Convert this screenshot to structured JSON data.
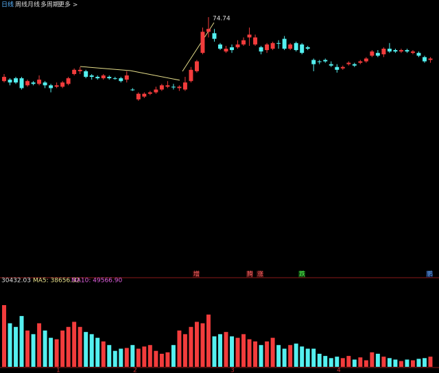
{
  "chart_data": {
    "type": "candlestick",
    "tabs": [
      "日线",
      "周线",
      "月线",
      "多周期",
      "更多 >"
    ],
    "peak_label_index": 35,
    "open": [
      70.2,
      70.3,
      70.4,
      70.4,
      69.9,
      70.1,
      70.0,
      70.1,
      69.9,
      69.8,
      69.8,
      70.0,
      70.7,
      70.9,
      70.9,
      70.6,
      70.5,
      70.4,
      70.5,
      70.4,
      70.4,
      70.3,
      69.6,
      68.9,
      69.1,
      69.3,
      69.4,
      69.6,
      69.8,
      69.8,
      69.7,
      69.6,
      70.2,
      70.9,
      72.2,
      73.7,
      73.6,
      72.8,
      72.3,
      72.6,
      72.6,
      72.8,
      73.3,
      72.8,
      72.6,
      72.4,
      72.5,
      72.9,
      73.2,
      72.5,
      72.9,
      72.8,
      72.6,
      71.7,
      71.6,
      71.7,
      71.4,
      71.2,
      71.1,
      71.4,
      71.4,
      71.5,
      71.6,
      72.0,
      72.2,
      72.1,
      72.5,
      72.4,
      72.3,
      72.4,
      72.2,
      72.2,
      71.9,
      71.7
    ],
    "close": [
      70.5,
      70.1,
      70.1,
      69.7,
      70.2,
      70.0,
      70.3,
      69.9,
      69.7,
      69.9,
      70.1,
      70.4,
      71.0,
      71.0,
      70.5,
      70.5,
      70.4,
      70.6,
      70.4,
      70.35,
      70.2,
      70.6,
      69.55,
      69.3,
      69.3,
      69.4,
      69.6,
      69.9,
      69.9,
      69.75,
      69.8,
      70.1,
      71.0,
      71.6,
      73.7,
      73.9,
      73.2,
      72.5,
      72.5,
      72.4,
      72.8,
      73.1,
      73.5,
      73.3,
      72.3,
      72.8,
      72.9,
      72.85,
      72.5,
      72.8,
      72.4,
      72.2,
      72.5,
      71.4,
      71.55,
      71.6,
      71.3,
      71.0,
      71.2,
      71.5,
      71.3,
      71.6,
      71.8,
      72.3,
      72.0,
      72.5,
      72.3,
      72.3,
      72.4,
      72.3,
      72.3,
      72.0,
      71.6,
      71.8
    ],
    "high": [
      70.7,
      70.4,
      70.5,
      70.5,
      70.3,
      70.2,
      70.6,
      70.2,
      70.0,
      70.1,
      70.2,
      70.5,
      71.1,
      71.2,
      71.0,
      70.7,
      70.6,
      70.7,
      70.6,
      70.5,
      70.5,
      70.9,
      69.7,
      69.4,
      69.4,
      69.5,
      69.8,
      70.0,
      70.2,
      70.0,
      69.9,
      70.5,
      71.2,
      71.7,
      74.0,
      74.74,
      73.9,
      72.9,
      72.7,
      72.8,
      73.1,
      73.3,
      74.0,
      73.5,
      72.7,
      72.9,
      73.0,
      73.1,
      73.4,
      72.9,
      73.0,
      72.9,
      72.7,
      71.8,
      71.7,
      71.8,
      71.6,
      71.4,
      71.3,
      71.6,
      71.5,
      71.7,
      71.9,
      72.4,
      72.4,
      72.6,
      72.9,
      72.5,
      72.5,
      72.5,
      72.4,
      72.3,
      72.0,
      71.9
    ],
    "low": [
      70.1,
      69.9,
      70.0,
      69.6,
      69.8,
      69.9,
      69.9,
      69.7,
      69.4,
      69.7,
      69.7,
      69.9,
      70.6,
      70.7,
      70.4,
      70.3,
      70.3,
      70.3,
      70.3,
      70.3,
      70.1,
      70.1,
      69.5,
      68.8,
      69.0,
      69.2,
      69.3,
      69.5,
      69.7,
      69.6,
      69.5,
      69.5,
      70.1,
      70.8,
      72.1,
      73.3,
      73.0,
      72.4,
      72.2,
      72.2,
      72.5,
      72.7,
      72.7,
      72.7,
      72.1,
      72.2,
      72.4,
      72.5,
      72.4,
      72.4,
      72.3,
      72.1,
      72.4,
      70.9,
      71.4,
      71.5,
      71.2,
      70.8,
      71.0,
      71.3,
      71.2,
      71.4,
      71.5,
      71.9,
      71.9,
      71.9,
      72.2,
      72.2,
      72.2,
      72.2,
      72.1,
      71.9,
      71.5,
      71.5
    ],
    "volume": [
      85000,
      60000,
      55000,
      70000,
      50000,
      45000,
      60000,
      50000,
      40000,
      38000,
      50000,
      55000,
      62000,
      55000,
      48000,
      45000,
      40000,
      35000,
      30000,
      22000,
      25000,
      26000,
      30000,
      25000,
      28000,
      30000,
      22000,
      18000,
      20000,
      30000,
      50000,
      45000,
      55000,
      62000,
      60000,
      72000,
      42000,
      45000,
      48000,
      42000,
      40000,
      45000,
      38000,
      35000,
      30000,
      35000,
      40000,
      30000,
      25000,
      30000,
      32000,
      28000,
      25000,
      25000,
      18000,
      15000,
      12000,
      14000,
      12000,
      15000,
      10000,
      13000,
      9000,
      20000,
      18000,
      14000,
      12000,
      10000,
      8000,
      10000,
      9000,
      11000,
      12000,
      14000
    ],
    "up_color": "#f23c3c",
    "down_color": "#54f0f0",
    "signals": [
      "增",
      "腾",
      "涨",
      "跌",
      "鹏"
    ],
    "volume_label": "30432.03",
    "ma5_label": "MA5: 38656.32",
    "ma10_label": "MA10: 49566.90",
    "x_labels": [
      "1",
      "2",
      "3",
      "4"
    ]
  }
}
